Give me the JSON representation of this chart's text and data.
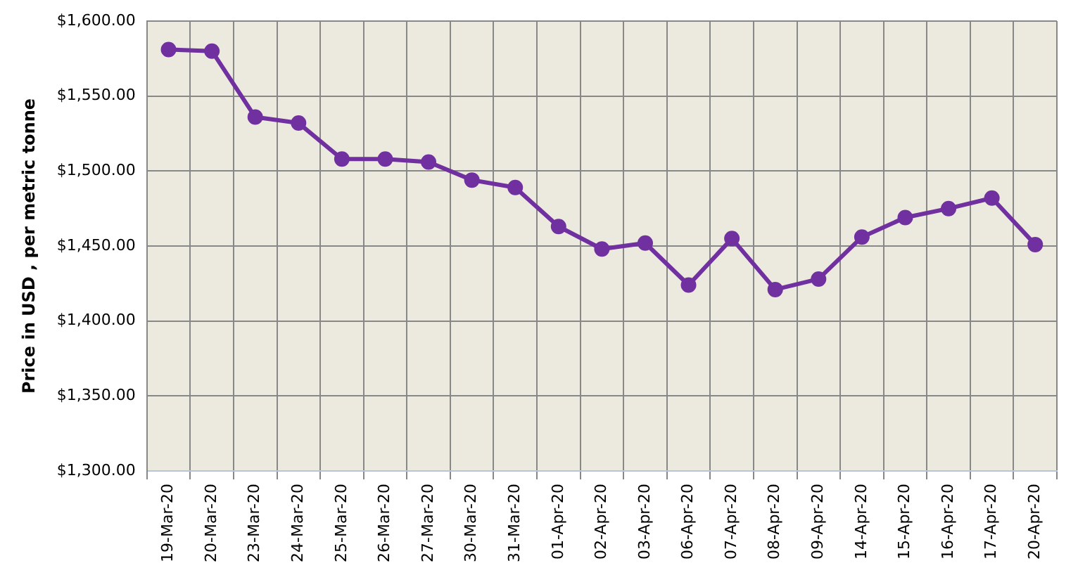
{
  "chart_data": {
    "type": "line",
    "ylabel": "Price in USD , per metric tonne",
    "categories": [
      "19-Mar-20",
      "20-Mar-20",
      "23-Mar-20",
      "24-Mar-20",
      "25-Mar-20",
      "26-Mar-20",
      "27-Mar-20",
      "30-Mar-20",
      "31-Mar-20",
      "01-Apr-20",
      "02-Apr-20",
      "03-Apr-20",
      "06-Apr-20",
      "07-Apr-20",
      "08-Apr-20",
      "09-Apr-20",
      "14-Apr-20",
      "15-Apr-20",
      "16-Apr-20",
      "17-Apr-20",
      "20-Apr-20"
    ],
    "series": [
      {
        "color": "#7030a0",
        "values": [
          1581,
          1580,
          1536,
          1532,
          1508,
          1508,
          1506,
          1494,
          1489,
          1463,
          1448,
          1452,
          1424,
          1455,
          1421,
          1428,
          1456,
          1469,
          1475,
          1482,
          1451
        ]
      }
    ],
    "ylim": [
      1300,
      1600
    ],
    "yticks": [
      {
        "value": 1300,
        "label": "$1,300.00"
      },
      {
        "value": 1350,
        "label": "$1,350.00"
      },
      {
        "value": 1400,
        "label": "$1,400.00"
      },
      {
        "value": 1450,
        "label": "$1,450.00"
      },
      {
        "value": 1500,
        "label": "$1,500.00"
      },
      {
        "value": 1550,
        "label": "$1,550.00"
      },
      {
        "value": 1600,
        "label": "$1,600.00"
      }
    ],
    "grid": true,
    "legend": false,
    "marker": "circle",
    "line_style": "solid"
  }
}
